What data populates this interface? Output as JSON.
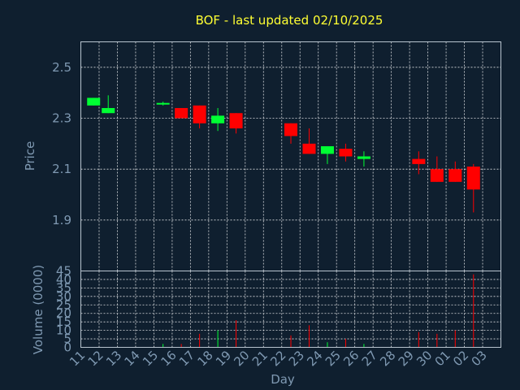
{
  "chart_data": {
    "type": "candlestick",
    "title": "BOF - last updated 02/10/2025",
    "xlabel": "Day",
    "ylabel": "Price",
    "volume_label": "Volume (0000)",
    "x_ticks": [
      "11",
      "12",
      "13",
      "14",
      "15",
      "16",
      "17",
      "18",
      "19",
      "20",
      "21",
      "22",
      "23",
      "24",
      "25",
      "26",
      "27",
      "28",
      "29",
      "30",
      "01",
      "02",
      "03"
    ],
    "price_ticks": [
      "2.5",
      "2.3",
      "2.1",
      "1.9"
    ],
    "price_tick_values": [
      2.5,
      2.3,
      2.1,
      1.9
    ],
    "ylim": [
      1.7,
      2.6
    ],
    "volume_ticks": [
      "45",
      "40",
      "35",
      "30",
      "25",
      "20",
      "15",
      "10",
      "5",
      "0"
    ],
    "volume_tick_values": [
      45,
      40,
      35,
      30,
      25,
      20,
      15,
      10,
      5,
      0
    ],
    "volume_ylim": [
      0,
      45
    ],
    "up_color": "#00ff33",
    "down_color": "#ff0000",
    "candles": [
      {
        "x": 0.2,
        "open": 2.35,
        "close": 2.38,
        "high": 2.38,
        "low": 2.35,
        "volume": 0
      },
      {
        "x": 1.0,
        "open": 2.32,
        "close": 2.34,
        "high": 2.39,
        "low": 2.32,
        "volume": 0
      },
      {
        "x": 4.0,
        "open": 2.355,
        "close": 2.36,
        "high": 2.365,
        "low": 2.35,
        "volume": 2
      },
      {
        "x": 5.0,
        "open": 2.34,
        "close": 2.3,
        "high": 2.34,
        "low": 2.3,
        "volume": 2
      },
      {
        "x": 6.0,
        "open": 2.35,
        "close": 2.28,
        "high": 2.35,
        "low": 2.26,
        "volume": 8
      },
      {
        "x": 7.0,
        "open": 2.28,
        "close": 2.31,
        "high": 2.34,
        "low": 2.25,
        "volume": 10
      },
      {
        "x": 8.0,
        "open": 2.32,
        "close": 2.26,
        "high": 2.32,
        "low": 2.24,
        "volume": 16
      },
      {
        "x": 11.0,
        "open": 2.28,
        "close": 2.23,
        "high": 2.28,
        "low": 2.2,
        "volume": 7
      },
      {
        "x": 12.0,
        "open": 2.2,
        "close": 2.16,
        "high": 2.26,
        "low": 2.16,
        "volume": 13
      },
      {
        "x": 13.0,
        "open": 2.16,
        "close": 2.19,
        "high": 2.19,
        "low": 2.12,
        "volume": 3
      },
      {
        "x": 14.0,
        "open": 2.18,
        "close": 2.15,
        "high": 2.2,
        "low": 2.13,
        "volume": 5
      },
      {
        "x": 15.0,
        "open": 2.14,
        "close": 2.15,
        "high": 2.17,
        "low": 2.11,
        "volume": 2
      },
      {
        "x": 18.0,
        "open": 2.14,
        "close": 2.12,
        "high": 2.17,
        "low": 2.08,
        "volume": 9
      },
      {
        "x": 19.0,
        "open": 2.1,
        "close": 2.05,
        "high": 2.15,
        "low": 2.05,
        "volume": 8
      },
      {
        "x": 20.0,
        "open": 2.1,
        "close": 2.05,
        "high": 2.13,
        "low": 2.05,
        "volume": 10
      },
      {
        "x": 21.0,
        "open": 2.11,
        "close": 2.02,
        "high": 2.12,
        "low": 1.93,
        "volume": 43
      }
    ]
  }
}
